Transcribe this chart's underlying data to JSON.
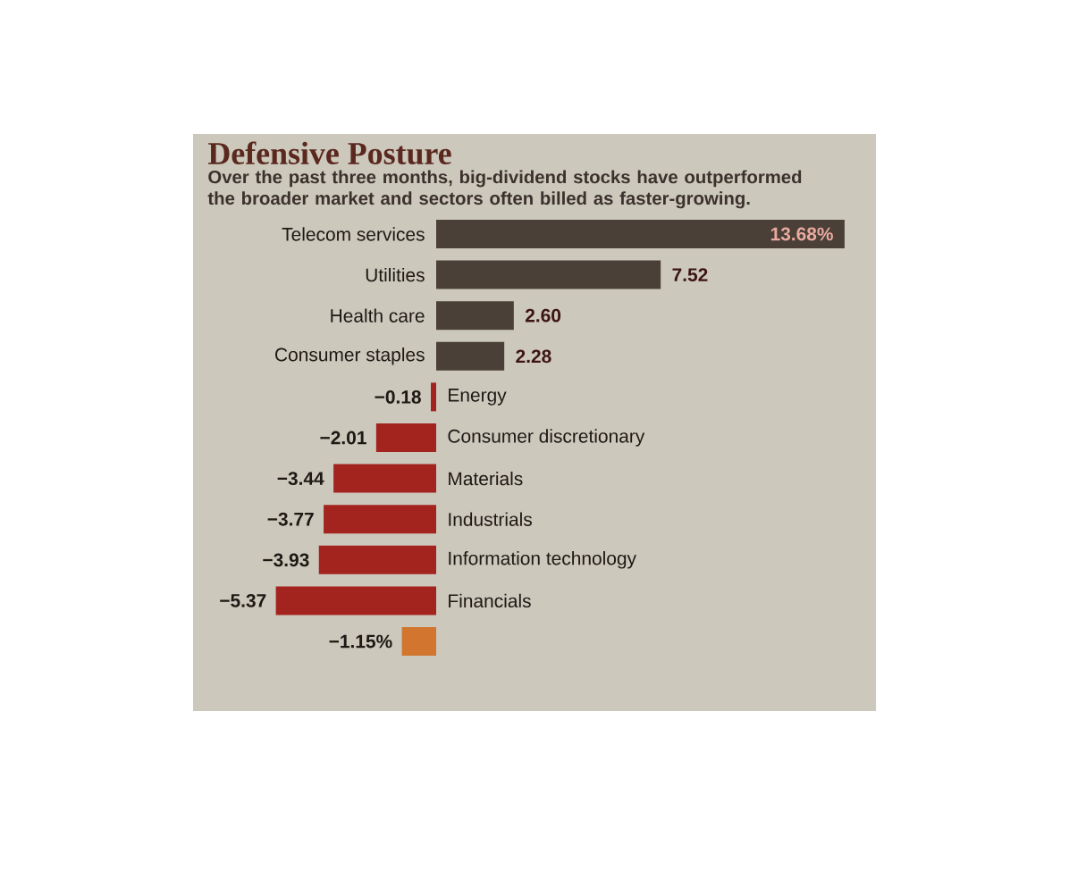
{
  "chart_data": {
    "type": "bar",
    "orientation": "horizontal",
    "title": "Defensive Posture",
    "subtitle": "Over the past three months, big-dividend stocks have outperformed the broader market and sectors often billed as faster-growing.",
    "categories": [
      "Telecom services",
      "Utilities",
      "Health care",
      "Consumer staples",
      "Energy",
      "Consumer discretionary",
      "Materials",
      "Industrials",
      "Information technology",
      "Financials",
      null
    ],
    "values": [
      13.68,
      7.52,
      2.6,
      2.28,
      -0.18,
      -2.01,
      -3.44,
      -3.77,
      -3.93,
      -5.37,
      -1.15
    ],
    "value_labels": [
      "13.68%",
      "7.52",
      "2.60",
      "2.28",
      "−0.18",
      "−2.01",
      "−3.44",
      "−3.77",
      "−3.93",
      "−5.37",
      "−1.15%"
    ],
    "colors": [
      "#4a4038",
      "#4a4038",
      "#4a4038",
      "#4a4038",
      "#a3231f",
      "#a3231f",
      "#a3231f",
      "#a3231f",
      "#a3231f",
      "#a3231f",
      "#d2752f"
    ]
  }
}
